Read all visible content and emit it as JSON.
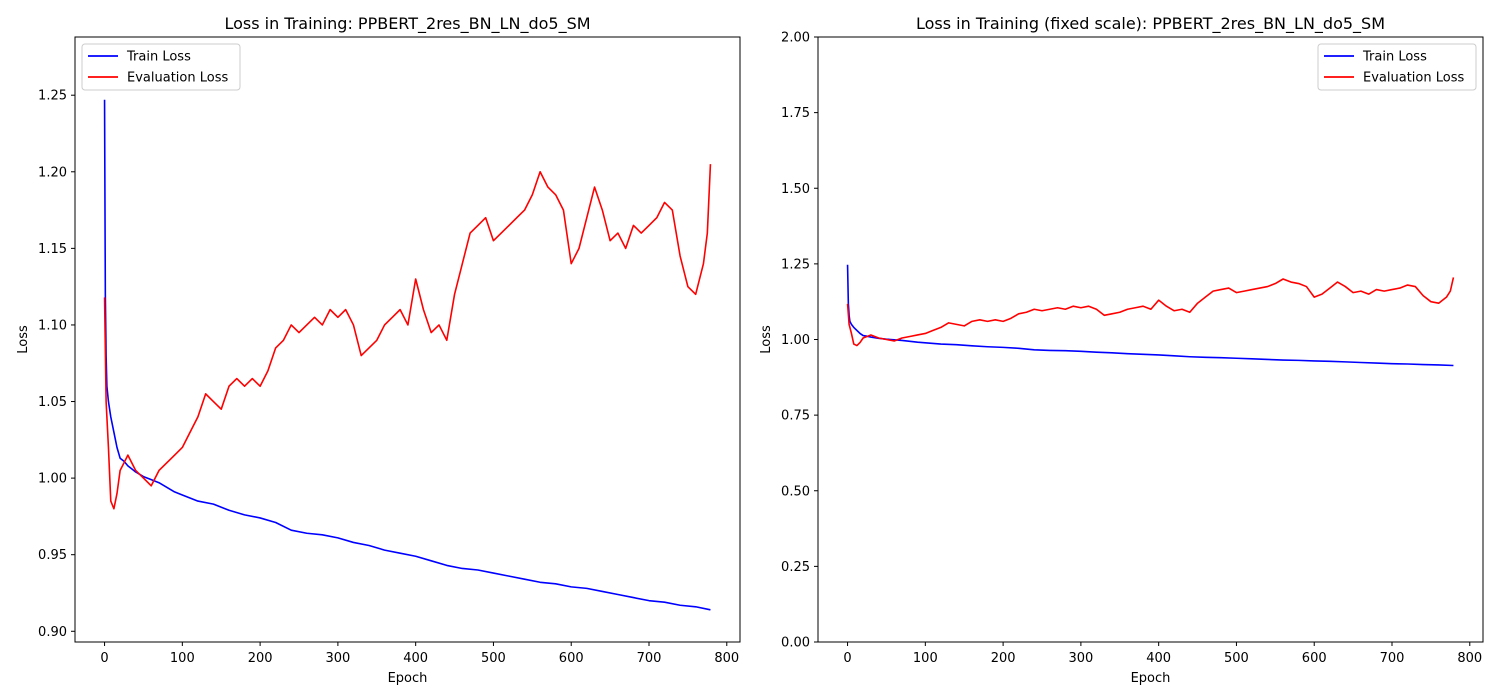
{
  "chart_data": [
    {
      "type": "line",
      "title": "Loss in Training: PPBERT_2res_BN_LN_do5_SM",
      "xlabel": "Epoch",
      "ylabel": "Loss",
      "xlim": [
        -38,
        817
      ],
      "ylim": [
        0.893,
        1.288
      ],
      "xticks": [
        0,
        100,
        200,
        300,
        400,
        500,
        600,
        700,
        800
      ],
      "yticks": [
        0.9,
        0.95,
        1.0,
        1.05,
        1.1,
        1.15,
        1.2,
        1.25
      ],
      "ytick_labels": [
        "0.90",
        "0.95",
        "1.00",
        "1.05",
        "1.10",
        "1.15",
        "1.20",
        "1.25"
      ],
      "grid": false,
      "legend": "upper-left",
      "series": [
        {
          "name": "Train Loss",
          "color": "#0000ff",
          "x": [
            0,
            1,
            2,
            3,
            5,
            8,
            12,
            16,
            20,
            25,
            30,
            35,
            40,
            50,
            60,
            70,
            80,
            90,
            100,
            120,
            140,
            160,
            180,
            200,
            220,
            240,
            260,
            280,
            300,
            320,
            340,
            360,
            380,
            400,
            420,
            440,
            460,
            480,
            500,
            520,
            540,
            560,
            580,
            600,
            620,
            640,
            660,
            680,
            700,
            720,
            740,
            760,
            779
          ],
          "y": [
            1.247,
            1.12,
            1.08,
            1.06,
            1.05,
            1.04,
            1.03,
            1.02,
            1.013,
            1.011,
            1.008,
            1.006,
            1.004,
            1.001,
            0.999,
            0.997,
            0.994,
            0.991,
            0.989,
            0.985,
            0.983,
            0.979,
            0.976,
            0.974,
            0.971,
            0.966,
            0.964,
            0.963,
            0.961,
            0.958,
            0.956,
            0.953,
            0.951,
            0.949,
            0.946,
            0.943,
            0.941,
            0.94,
            0.938,
            0.936,
            0.934,
            0.932,
            0.931,
            0.929,
            0.928,
            0.926,
            0.924,
            0.922,
            0.92,
            0.919,
            0.917,
            0.916,
            0.914
          ]
        },
        {
          "name": "Evaluation Loss",
          "color": "#ff0000",
          "x": [
            0,
            2,
            5,
            8,
            12,
            16,
            20,
            25,
            30,
            40,
            50,
            60,
            70,
            80,
            90,
            100,
            110,
            120,
            130,
            140,
            150,
            160,
            170,
            180,
            190,
            200,
            210,
            220,
            230,
            240,
            250,
            260,
            270,
            280,
            290,
            300,
            310,
            320,
            330,
            340,
            350,
            360,
            370,
            380,
            390,
            400,
            410,
            420,
            430,
            440,
            450,
            460,
            470,
            480,
            490,
            500,
            510,
            520,
            530,
            540,
            550,
            560,
            570,
            580,
            590,
            600,
            610,
            620,
            630,
            640,
            650,
            660,
            670,
            680,
            690,
            700,
            710,
            720,
            730,
            740,
            750,
            760,
            770,
            775,
            779
          ],
          "y": [
            1.118,
            1.05,
            1.02,
            0.985,
            0.98,
            0.99,
            1.005,
            1.01,
            1.015,
            1.005,
            1.0,
            0.995,
            1.005,
            1.01,
            1.015,
            1.02,
            1.03,
            1.04,
            1.055,
            1.05,
            1.045,
            1.06,
            1.065,
            1.06,
            1.065,
            1.06,
            1.07,
            1.085,
            1.09,
            1.1,
            1.095,
            1.1,
            1.105,
            1.1,
            1.11,
            1.105,
            1.11,
            1.1,
            1.08,
            1.085,
            1.09,
            1.1,
            1.105,
            1.11,
            1.1,
            1.13,
            1.11,
            1.095,
            1.1,
            1.09,
            1.12,
            1.14,
            1.16,
            1.165,
            1.17,
            1.155,
            1.16,
            1.165,
            1.17,
            1.175,
            1.185,
            1.2,
            1.19,
            1.185,
            1.175,
            1.14,
            1.15,
            1.17,
            1.19,
            1.175,
            1.155,
            1.16,
            1.15,
            1.165,
            1.16,
            1.165,
            1.17,
            1.18,
            1.175,
            1.145,
            1.125,
            1.12,
            1.14,
            1.16,
            1.205
          ]
        }
      ]
    },
    {
      "type": "line",
      "title": "Loss in Training (fixed scale): PPBERT_2res_BN_LN_do5_SM",
      "xlabel": "Epoch",
      "ylabel": "Loss",
      "xlim": [
        -38,
        817
      ],
      "ylim": [
        0,
        2.0
      ],
      "xticks": [
        0,
        100,
        200,
        300,
        400,
        500,
        600,
        700,
        800
      ],
      "yticks": [
        0,
        0.25,
        0.5,
        0.75,
        1.0,
        1.25,
        1.5,
        1.75,
        2.0
      ],
      "ytick_labels": [
        "0.00",
        "0.25",
        "0.50",
        "0.75",
        "1.00",
        "1.25",
        "1.50",
        "1.75",
        "2.00"
      ],
      "grid": false,
      "legend": "upper-right",
      "series": [
        {
          "name": "Train Loss",
          "color": "#0000ff",
          "x": [
            0,
            1,
            2,
            3,
            5,
            8,
            12,
            16,
            20,
            25,
            30,
            35,
            40,
            50,
            60,
            70,
            80,
            90,
            100,
            120,
            140,
            160,
            180,
            200,
            220,
            240,
            260,
            280,
            300,
            320,
            340,
            360,
            380,
            400,
            420,
            440,
            460,
            480,
            500,
            520,
            540,
            560,
            580,
            600,
            620,
            640,
            660,
            680,
            700,
            720,
            740,
            760,
            779
          ],
          "y": [
            1.247,
            1.12,
            1.08,
            1.06,
            1.05,
            1.04,
            1.03,
            1.02,
            1.013,
            1.011,
            1.008,
            1.006,
            1.004,
            1.001,
            0.999,
            0.997,
            0.994,
            0.991,
            0.989,
            0.985,
            0.983,
            0.979,
            0.976,
            0.974,
            0.971,
            0.966,
            0.964,
            0.963,
            0.961,
            0.958,
            0.956,
            0.953,
            0.951,
            0.949,
            0.946,
            0.943,
            0.941,
            0.94,
            0.938,
            0.936,
            0.934,
            0.932,
            0.931,
            0.929,
            0.928,
            0.926,
            0.924,
            0.922,
            0.92,
            0.919,
            0.917,
            0.916,
            0.914
          ]
        },
        {
          "name": "Evaluation Loss",
          "color": "#ff0000",
          "x": [
            0,
            2,
            5,
            8,
            12,
            16,
            20,
            25,
            30,
            40,
            50,
            60,
            70,
            80,
            90,
            100,
            110,
            120,
            130,
            140,
            150,
            160,
            170,
            180,
            190,
            200,
            210,
            220,
            230,
            240,
            250,
            260,
            270,
            280,
            290,
            300,
            310,
            320,
            330,
            340,
            350,
            360,
            370,
            380,
            390,
            400,
            410,
            420,
            430,
            440,
            450,
            460,
            470,
            480,
            490,
            500,
            510,
            520,
            530,
            540,
            550,
            560,
            570,
            580,
            590,
            600,
            610,
            620,
            630,
            640,
            650,
            660,
            670,
            680,
            690,
            700,
            710,
            720,
            730,
            740,
            750,
            760,
            770,
            775,
            779
          ],
          "y": [
            1.118,
            1.05,
            1.02,
            0.985,
            0.98,
            0.99,
            1.005,
            1.01,
            1.015,
            1.005,
            1.0,
            0.995,
            1.005,
            1.01,
            1.015,
            1.02,
            1.03,
            1.04,
            1.055,
            1.05,
            1.045,
            1.06,
            1.065,
            1.06,
            1.065,
            1.06,
            1.07,
            1.085,
            1.09,
            1.1,
            1.095,
            1.1,
            1.105,
            1.1,
            1.11,
            1.105,
            1.11,
            1.1,
            1.08,
            1.085,
            1.09,
            1.1,
            1.105,
            1.11,
            1.1,
            1.13,
            1.11,
            1.095,
            1.1,
            1.09,
            1.12,
            1.14,
            1.16,
            1.165,
            1.17,
            1.155,
            1.16,
            1.165,
            1.17,
            1.175,
            1.185,
            1.2,
            1.19,
            1.185,
            1.175,
            1.14,
            1.15,
            1.17,
            1.19,
            1.175,
            1.155,
            1.16,
            1.15,
            1.165,
            1.16,
            1.165,
            1.17,
            1.18,
            1.175,
            1.145,
            1.125,
            1.12,
            1.14,
            1.16,
            1.205
          ]
        }
      ]
    }
  ]
}
